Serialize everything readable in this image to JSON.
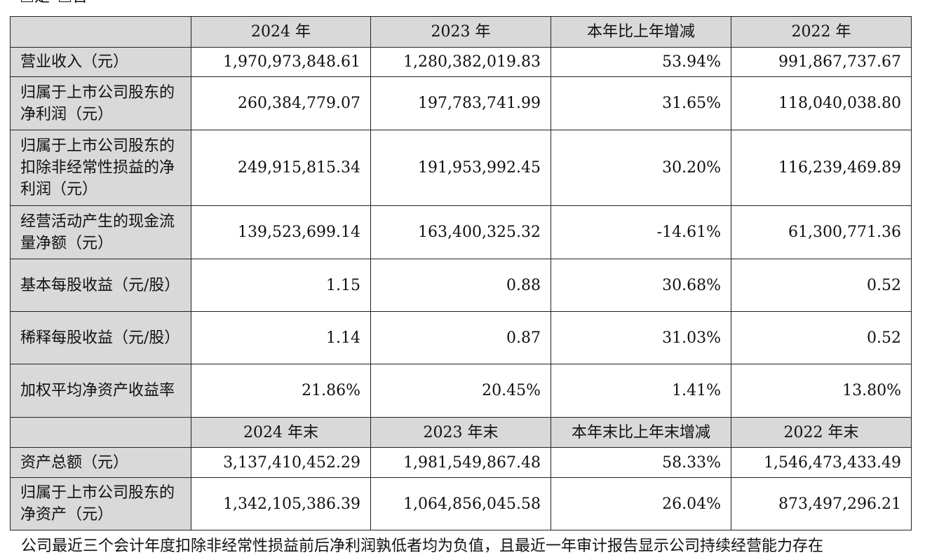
{
  "top_line": {
    "yes_label": "是",
    "no_label": "否"
  },
  "header1": [
    "",
    "2024 年",
    "2023 年",
    "本年比上年增减",
    "2022 年"
  ],
  "rows1": [
    {
      "label": "营业收入（元）",
      "values": [
        "1,970,973,848.61",
        "1,280,382,019.83",
        "53.94%",
        "991,867,737.67"
      ]
    },
    {
      "label": "归属于上市公司股东的净利润（元）",
      "values": [
        "260,384,779.07",
        "197,783,741.99",
        "31.65%",
        "118,040,038.80"
      ]
    },
    {
      "label": "归属于上市公司股东的扣除非经常性损益的净利润（元）",
      "values": [
        "249,915,815.34",
        "191,953,992.45",
        "30.20%",
        "116,239,469.89"
      ]
    },
    {
      "label": "经营活动产生的现金流量净额（元）",
      "values": [
        "139,523,699.14",
        "163,400,325.32",
        "-14.61%",
        "61,300,771.36"
      ]
    },
    {
      "label": "基本每股收益（元/股）",
      "values": [
        "1.15",
        "0.88",
        "30.68%",
        "0.52"
      ]
    },
    {
      "label": "稀释每股收益（元/股）",
      "values": [
        "1.14",
        "0.87",
        "31.03%",
        "0.52"
      ]
    },
    {
      "label": "加权平均净资产收益率",
      "values": [
        "21.86%",
        "20.45%",
        "1.41%",
        "13.80%"
      ]
    }
  ],
  "header2": [
    "",
    "2024 年末",
    "2023 年末",
    "本年末比上年末增减",
    "2022 年末"
  ],
  "rows2": [
    {
      "label": "资产总额（元）",
      "values": [
        "3,137,410,452.29",
        "1,981,549,867.48",
        "58.33%",
        "1,546,473,433.49"
      ]
    },
    {
      "label": "归属于上市公司股东的净资产（元）",
      "values": [
        "1,342,105,386.39",
        "1,064,856,045.58",
        "26.04%",
        "873,497,296.21"
      ]
    }
  ],
  "bottom_line": "公司最近三个会计年度扣除非经常性损益前后净利润孰低者均为负值，且最近一年审计报告显示公司持续经营能力存在"
}
